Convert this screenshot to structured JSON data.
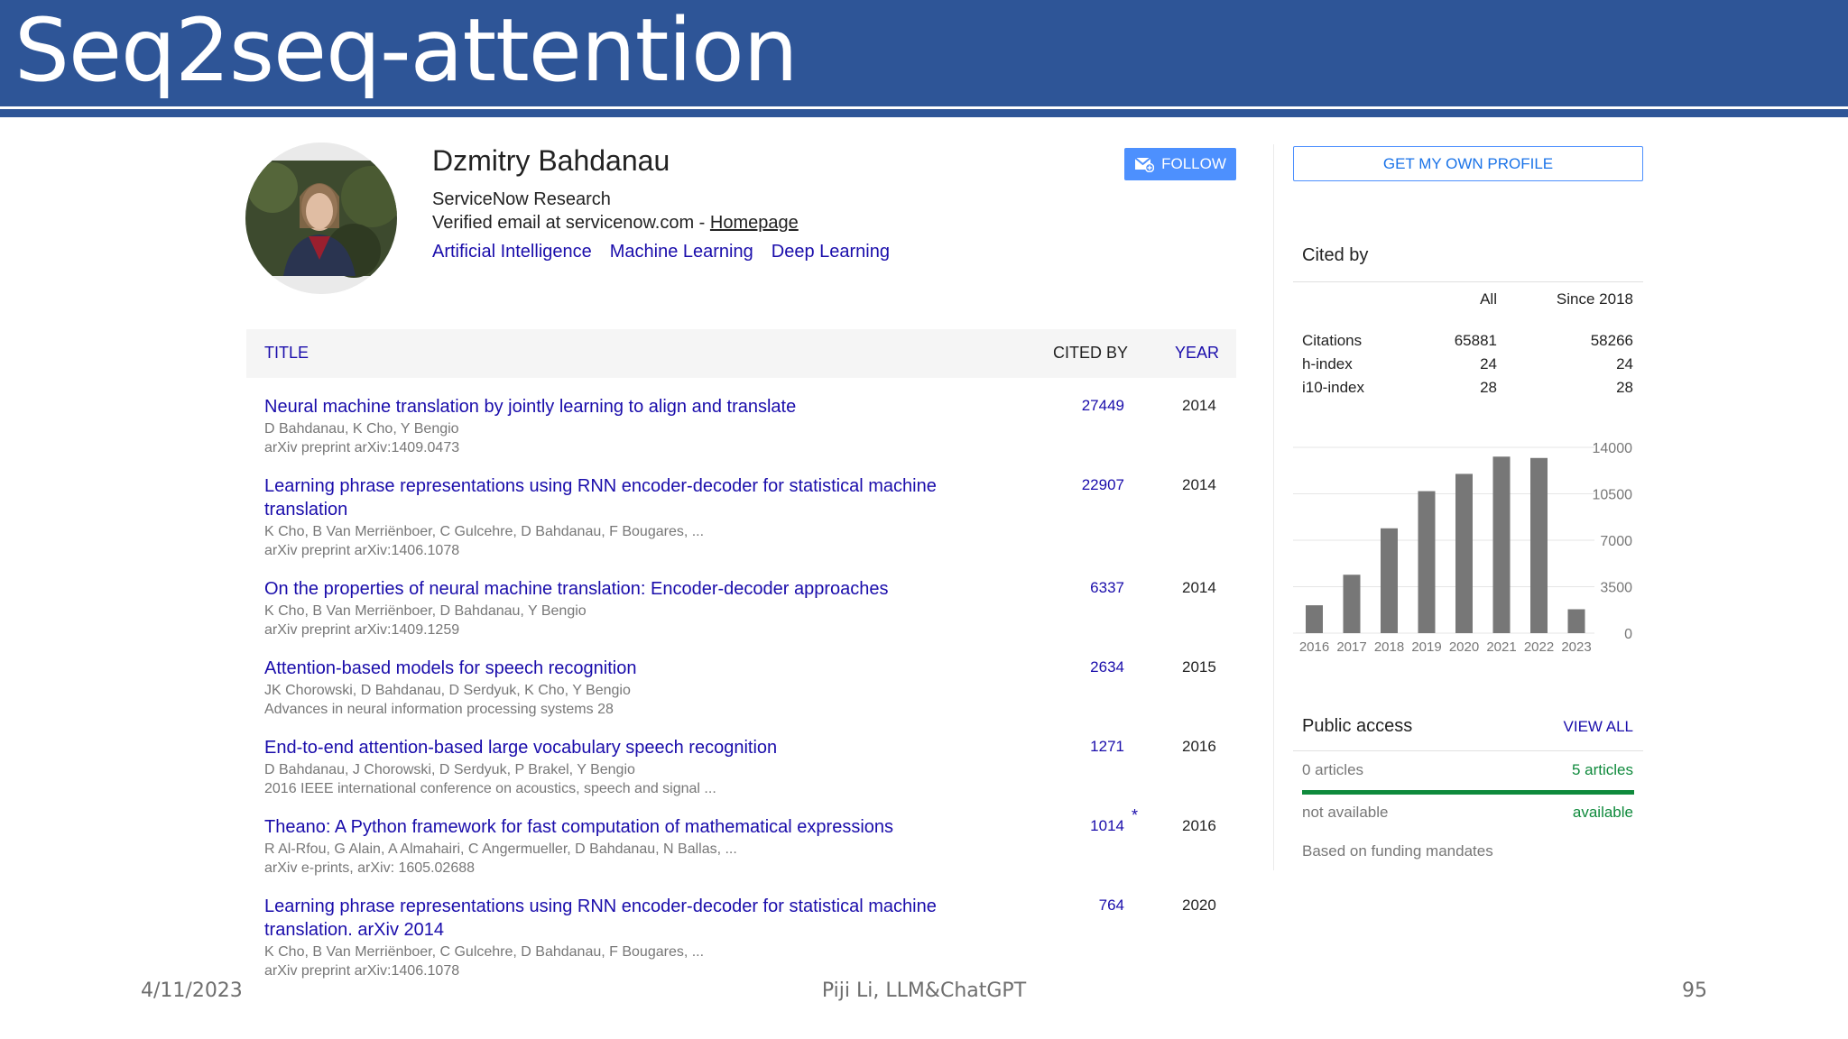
{
  "slide": {
    "title": "Seq2seq-attention",
    "footer_date": "4/11/2023",
    "footer_center": "Piji Li, LLM&ChatGPT",
    "page_number": "95",
    "header_color": "#2e5597"
  },
  "profile": {
    "name": "Dzmitry Bahdanau",
    "affiliation": "ServiceNow Research",
    "email_text": "Verified email at servicenow.com - ",
    "homepage_label": "Homepage",
    "interests": [
      "Artificial Intelligence",
      "Machine Learning",
      "Deep Learning"
    ],
    "follow_label": "FOLLOW",
    "avatar_icon": "person-photo"
  },
  "table": {
    "headers": {
      "title": "TITLE",
      "cited_by": "CITED BY",
      "year": "YEAR"
    },
    "rows": [
      {
        "title": "Neural machine translation by jointly learning to align and translate",
        "authors": "D Bahdanau, K Cho, Y Bengio",
        "venue": "arXiv preprint arXiv:1409.0473",
        "cited": "27449",
        "year": "2014",
        "star": ""
      },
      {
        "title": "Learning phrase representations using RNN encoder-decoder for statistical machine translation",
        "authors": "K Cho, B Van Merriënboer, C Gulcehre, D Bahdanau, F Bougares, ...",
        "venue": "arXiv preprint arXiv:1406.1078",
        "cited": "22907",
        "year": "2014",
        "star": ""
      },
      {
        "title": "On the properties of neural machine translation: Encoder-decoder approaches",
        "authors": "K Cho, B Van Merriënboer, D Bahdanau, Y Bengio",
        "venue": "arXiv preprint arXiv:1409.1259",
        "cited": "6337",
        "year": "2014",
        "star": ""
      },
      {
        "title": "Attention-based models for speech recognition",
        "authors": "JK Chorowski, D Bahdanau, D Serdyuk, K Cho, Y Bengio",
        "venue": "Advances in neural information processing systems 28",
        "cited": "2634",
        "year": "2015",
        "star": ""
      },
      {
        "title": "End-to-end attention-based large vocabulary speech recognition",
        "authors": "D Bahdanau, J Chorowski, D Serdyuk, P Brakel, Y Bengio",
        "venue": "2016 IEEE international conference on acoustics, speech and signal ...",
        "cited": "1271",
        "year": "2016",
        "star": ""
      },
      {
        "title": "Theano: A Python framework for fast computation of mathematical expressions",
        "authors": "R Al-Rfou, G Alain, A Almahairi, C Angermueller, D Bahdanau, N Ballas, ...",
        "venue": "arXiv e-prints, arXiv: 1605.02688",
        "cited": "1014",
        "year": "2016",
        "star": "*"
      },
      {
        "title": "Learning phrase representations using RNN encoder-decoder for statistical machine translation. arXiv 2014",
        "authors": "K Cho, B Van Merriënboer, C Gulcehre, D Bahdanau, F Bougares, ...",
        "venue": "arXiv preprint arXiv:1406.1078",
        "cited": "764",
        "year": "2020",
        "star": ""
      }
    ]
  },
  "sidebar": {
    "own_profile_label": "GET MY OWN PROFILE",
    "cited_by_title": "Cited by",
    "columns": {
      "all": "All",
      "since": "Since 2018"
    },
    "metrics": [
      {
        "label": "Citations",
        "all": "65881",
        "since": "58266"
      },
      {
        "label": "h-index",
        "all": "24",
        "since": "24"
      },
      {
        "label": "i10-index",
        "all": "28",
        "since": "28"
      }
    ],
    "public_access": {
      "title": "Public access",
      "view_all": "VIEW ALL",
      "left_count": "0 articles",
      "right_count": "5 articles",
      "left_status": "not available",
      "right_status": "available",
      "note": "Based on funding mandates",
      "available_fraction": 1.0,
      "bar_color": "#0f8a3c"
    }
  },
  "chart_data": {
    "type": "bar",
    "categories": [
      "2016",
      "2017",
      "2018",
      "2019",
      "2020",
      "2021",
      "2022",
      "2023"
    ],
    "values": [
      2100,
      4400,
      7900,
      10700,
      12000,
      13300,
      13200,
      1800
    ],
    "y_ticks": [
      "14000",
      "10500",
      "7000",
      "3500",
      "0"
    ],
    "ylim": [
      0,
      14000
    ],
    "bar_color": "#777777",
    "grid": true
  }
}
